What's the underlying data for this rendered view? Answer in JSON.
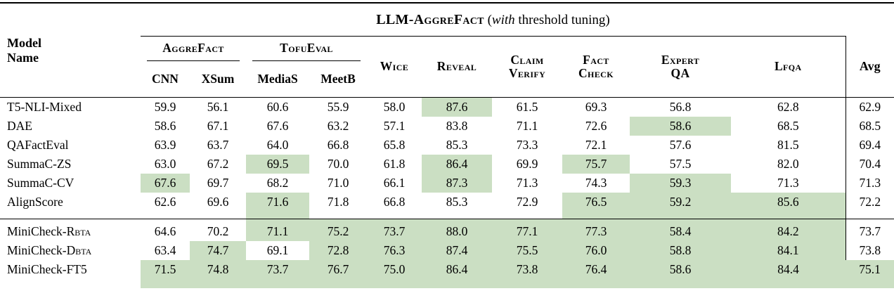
{
  "colors": {
    "highlight": "#cbdfc3"
  },
  "title": {
    "name": "LLM-AggreFact",
    "paren_open": " (",
    "italic_word": "with",
    "paren_rest": " threshold tuning)"
  },
  "header": {
    "model_line1": "Model",
    "model_line2": "Name",
    "groups": {
      "aggrefact": "AggreFact",
      "tofueval": "TofuEval",
      "wice": "Wice",
      "reveal": "Reveal",
      "claim_line1": "Claim",
      "claim_line2": "Verify",
      "fact_line1": "Fact",
      "fact_line2": "Check",
      "expert_line1": "Expert",
      "expert_line2": "QA",
      "lfqa": "Lfqa",
      "avg": "Avg"
    },
    "subcolumns": {
      "cnn": "CNN",
      "xsum": "XSum",
      "medias": "MediaS",
      "meetb": "MeetB"
    }
  },
  "baseline_rows": [
    {
      "model": "T5-NLI-Mixed",
      "model_sc": "",
      "values": [
        "59.9",
        "56.1",
        "60.6",
        "55.9",
        "58.0",
        "87.6",
        "61.5",
        "69.3",
        "56.8",
        "62.8",
        "62.9"
      ],
      "highlight": [
        5
      ]
    },
    {
      "model": "DAE",
      "model_sc": "",
      "values": [
        "58.6",
        "67.1",
        "67.6",
        "63.2",
        "57.1",
        "83.8",
        "71.1",
        "72.6",
        "58.6",
        "68.5",
        "68.5"
      ],
      "highlight": [
        8
      ]
    },
    {
      "model": "QAFactEval",
      "model_sc": "",
      "values": [
        "63.9",
        "63.7",
        "64.0",
        "66.8",
        "65.8",
        "85.3",
        "73.3",
        "72.1",
        "57.6",
        "81.5",
        "69.4"
      ],
      "highlight": []
    },
    {
      "model": "SummaC-ZS",
      "model_sc": "",
      "values": [
        "63.0",
        "67.2",
        "69.5",
        "70.0",
        "61.8",
        "86.4",
        "69.9",
        "75.7",
        "57.5",
        "82.0",
        "70.4"
      ],
      "highlight": [
        2,
        5,
        7
      ]
    },
    {
      "model": "SummaC-CV",
      "model_sc": "",
      "values": [
        "67.6",
        "69.7",
        "68.2",
        "71.0",
        "66.1",
        "87.3",
        "71.3",
        "74.3",
        "59.3",
        "71.3",
        "71.3"
      ],
      "highlight": [
        0,
        5,
        8
      ]
    },
    {
      "model": "AlignScore",
      "model_sc": "",
      "values": [
        "62.6",
        "69.6",
        "71.6",
        "71.8",
        "66.8",
        "85.3",
        "72.9",
        "76.5",
        "59.2",
        "85.6",
        "72.2"
      ],
      "highlight": [
        2,
        7,
        8,
        9
      ]
    }
  ],
  "minicheck_rows": [
    {
      "model": "MiniCheck-R",
      "model_sc": "bta",
      "values": [
        "64.6",
        "70.2",
        "71.1",
        "75.2",
        "73.7",
        "88.0",
        "77.1",
        "77.3",
        "58.4",
        "84.2",
        "73.7"
      ],
      "highlight": [
        2,
        3,
        4,
        5,
        6,
        7,
        8,
        9
      ]
    },
    {
      "model": "MiniCheck-D",
      "model_sc": "bta",
      "values": [
        "63.4",
        "74.7",
        "69.1",
        "72.8",
        "76.3",
        "87.4",
        "75.5",
        "76.0",
        "58.8",
        "84.1",
        "73.8"
      ],
      "highlight": [
        1,
        3,
        4,
        5,
        6,
        7,
        8,
        9
      ]
    },
    {
      "model": "MiniCheck-FT5",
      "model_sc": "",
      "values": [
        "71.5",
        "74.8",
        "73.7",
        "76.7",
        "75.0",
        "86.4",
        "73.8",
        "76.4",
        "58.6",
        "84.4",
        "75.1"
      ],
      "highlight": [
        0,
        1,
        2,
        3,
        4,
        5,
        6,
        7,
        8,
        9,
        10
      ]
    }
  ]
}
